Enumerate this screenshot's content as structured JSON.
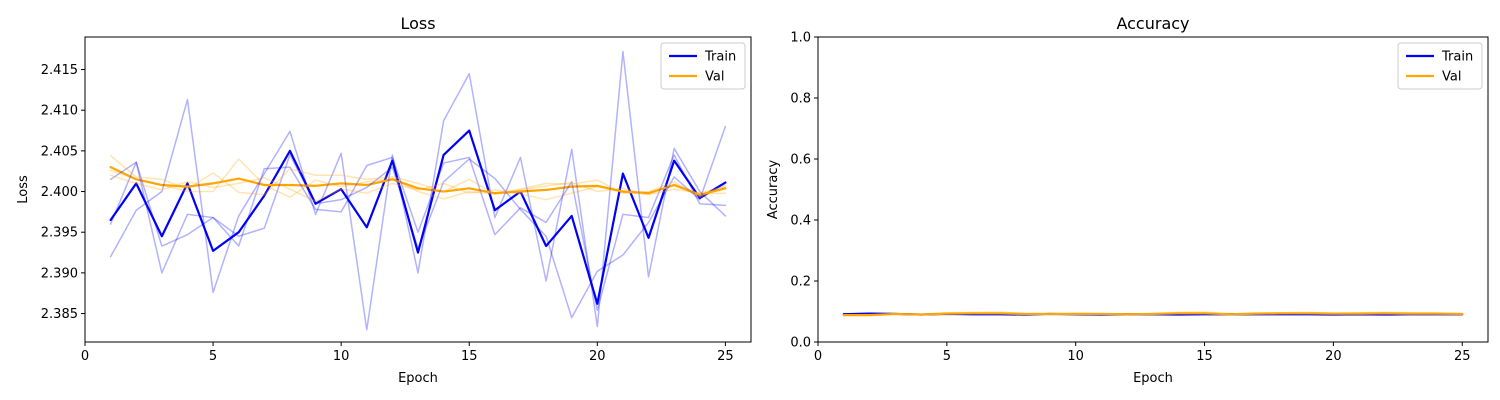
{
  "chart_data": [
    {
      "type": "line",
      "title": "Loss",
      "xlabel": "Epoch",
      "ylabel": "Loss",
      "xlim": [
        0,
        26
      ],
      "ylim": [
        2.3815,
        2.419
      ],
      "xticks": [
        0,
        5,
        10,
        15,
        20,
        25
      ],
      "yticks": [
        2.385,
        2.39,
        2.395,
        2.4,
        2.405,
        2.41,
        2.415
      ],
      "ytick_decimals": 3,
      "legend_position": "top-right",
      "x": [
        1,
        2,
        3,
        4,
        5,
        6,
        7,
        8,
        9,
        10,
        11,
        12,
        13,
        14,
        15,
        16,
        17,
        18,
        19,
        20,
        21,
        22,
        23,
        24,
        25
      ],
      "series": [
        {
          "name": "Train",
          "color": "#0000ff",
          "width": 2.2,
          "opacity": 1,
          "values": [
            2.3965,
            2.401,
            2.3945,
            2.401,
            2.3927,
            2.395,
            2.3995,
            2.405,
            2.3985,
            2.4003,
            2.3956,
            2.4038,
            2.3925,
            2.4045,
            2.4075,
            2.3977,
            2.4,
            2.3933,
            2.397,
            2.3862,
            2.4022,
            2.3943,
            2.4038,
            2.3992,
            2.4011
          ]
        },
        {
          "name": "Val",
          "color": "#ffa500",
          "width": 2.2,
          "opacity": 1,
          "values": [
            2.403,
            2.4015,
            2.4008,
            2.4006,
            2.401,
            2.4016,
            2.4008,
            2.4008,
            2.4007,
            2.401,
            2.4008,
            2.4015,
            2.4004,
            2.4,
            2.4004,
            2.3998,
            2.4,
            2.4002,
            2.4006,
            2.4007,
            2.4,
            2.3998,
            2.4008,
            2.3996,
            2.4004
          ]
        },
        {
          "color": "#0000ff",
          "width": 1.5,
          "opacity": 0.3,
          "values": [
            2.392,
            2.3977,
            2.4,
            2.4113,
            2.3876,
            2.397,
            2.4022,
            2.4074,
            2.3972,
            2.4047,
            2.383,
            2.4045,
            2.39,
            2.4087,
            2.4145,
            2.3968,
            2.4042,
            2.389,
            2.4052,
            2.3834,
            2.4172,
            2.3895,
            2.4053,
            2.4,
            2.397
          ]
        },
        {
          "color": "#0000ff",
          "width": 1.5,
          "opacity": 0.3,
          "values": [
            2.396,
            2.4036,
            2.39,
            2.3972,
            2.3968,
            2.3933,
            2.4028,
            2.403,
            2.3978,
            2.3975,
            2.4032,
            2.4042,
            2.395,
            2.4035,
            2.4042,
            2.3947,
            2.398,
            2.3962,
            2.4012,
            2.3854,
            2.3972,
            2.3968,
            2.4045,
            2.3985,
            2.3983
          ]
        },
        {
          "color": "#0000ff",
          "width": 1.5,
          "opacity": 0.3,
          "values": [
            2.4015,
            2.4036,
            2.3933,
            2.3947,
            2.3968,
            2.3945,
            2.3955,
            2.4045,
            2.3985,
            2.399,
            2.4005,
            2.403,
            2.393,
            2.4012,
            2.404,
            2.4016,
            2.3978,
            2.3945,
            2.3845,
            2.3902,
            2.3922,
            2.3962,
            2.4018,
            2.399,
            2.408
          ]
        },
        {
          "color": "#ffa500",
          "width": 1.5,
          "opacity": 0.3,
          "values": [
            2.4044,
            2.4018,
            2.4015,
            2.4003,
            2.4023,
            2.3999,
            2.3996,
            2.4028,
            2.402,
            2.402,
            2.4015,
            2.4018,
            2.401,
            2.4,
            2.4015,
            2.3997,
            2.4003,
            2.401,
            2.4009,
            2.4014,
            2.3998,
            2.4,
            2.4012,
            2.3993,
            2.4008
          ]
        },
        {
          "color": "#ffa500",
          "width": 1.5,
          "opacity": 0.3,
          "values": [
            2.4026,
            2.4015,
            2.4008,
            2.4,
            2.4,
            2.404,
            2.4008,
            2.3993,
            2.4014,
            2.4006,
            2.4012,
            2.4016,
            2.4,
            2.3991,
            2.4,
            2.3997,
            2.4002,
            2.4007,
            2.4011,
            2.4,
            2.4004,
            2.3996,
            2.4003,
            2.3998,
            2.4006
          ]
        },
        {
          "color": "#ffa500",
          "width": 1.5,
          "opacity": 0.3,
          "values": [
            2.402,
            2.401,
            2.4002,
            2.4012,
            2.4005,
            2.401,
            2.4017,
            2.4003,
            2.3988,
            2.4003,
            2.3998,
            2.401,
            2.4002,
            2.401,
            2.3998,
            2.4002,
            2.3997,
            2.399,
            2.3998,
            2.4006,
            2.3999,
            2.3997,
            2.4009,
            2.3997,
            2.3998
          ]
        }
      ]
    },
    {
      "type": "line",
      "title": "Accuracy",
      "xlabel": "Epoch",
      "ylabel": "Accuracy",
      "xlim": [
        0,
        26
      ],
      "ylim": [
        0,
        1
      ],
      "xticks": [
        0,
        5,
        10,
        15,
        20,
        25
      ],
      "yticks": [
        0.0,
        0.2,
        0.4,
        0.6,
        0.8,
        1.0
      ],
      "ytick_decimals": 1,
      "legend_position": "top-right",
      "x": [
        1,
        2,
        3,
        4,
        5,
        6,
        7,
        8,
        9,
        10,
        11,
        12,
        13,
        14,
        15,
        16,
        17,
        18,
        19,
        20,
        21,
        22,
        23,
        24,
        25
      ],
      "series": [
        {
          "color": "#0000ff",
          "width": 1.5,
          "opacity": 0.3,
          "values": [
            0.092,
            0.094,
            0.093,
            0.09,
            0.093,
            0.091,
            0.092,
            0.091,
            0.093,
            0.092,
            0.091,
            0.092,
            0.092,
            0.09,
            0.092,
            0.093,
            0.091,
            0.092,
            0.093,
            0.091,
            0.092,
            0.09,
            0.092,
            0.093,
            0.092
          ]
        },
        {
          "color": "#ffa500",
          "width": 1.5,
          "opacity": 0.3,
          "values": [
            0.087,
            0.089,
            0.094,
            0.092,
            0.096,
            0.097,
            0.098,
            0.094,
            0.093,
            0.095,
            0.094,
            0.092,
            0.094,
            0.097,
            0.098,
            0.092,
            0.095,
            0.096,
            0.097,
            0.094,
            0.096,
            0.097,
            0.096,
            0.095,
            0.093
          ]
        },
        {
          "name": "Train",
          "color": "#0000ff",
          "width": 2.2,
          "opacity": 1,
          "values": [
            0.091,
            0.093,
            0.092,
            0.09,
            0.092,
            0.091,
            0.091,
            0.09,
            0.092,
            0.091,
            0.09,
            0.091,
            0.091,
            0.09,
            0.091,
            0.091,
            0.091,
            0.091,
            0.091,
            0.09,
            0.091,
            0.09,
            0.091,
            0.091,
            0.091
          ]
        },
        {
          "name": "Val",
          "color": "#ffa500",
          "width": 2.2,
          "opacity": 1,
          "values": [
            0.088,
            0.088,
            0.092,
            0.09,
            0.093,
            0.094,
            0.094,
            0.092,
            0.092,
            0.092,
            0.092,
            0.091,
            0.092,
            0.094,
            0.094,
            0.091,
            0.093,
            0.094,
            0.094,
            0.093,
            0.093,
            0.094,
            0.093,
            0.093,
            0.092
          ]
        }
      ]
    }
  ]
}
